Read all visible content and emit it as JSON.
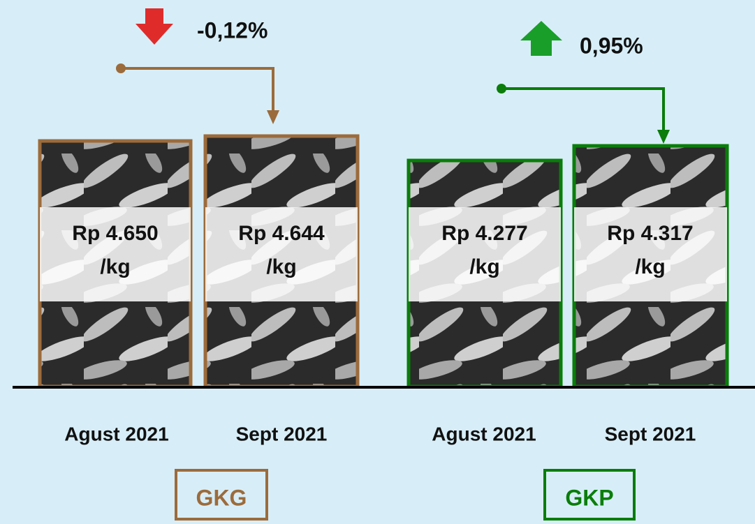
{
  "groups": [
    {
      "label": "GKG",
      "change": "-0,12%",
      "items": [
        {
          "price": "Rp 4.650",
          "unit": "/kg",
          "period": "Agust 2021"
        },
        {
          "price": "Rp 4.644",
          "unit": "/kg",
          "period": "Sept 2021"
        }
      ]
    },
    {
      "label": "GKP",
      "change": "0,95%",
      "items": [
        {
          "price": "Rp 4.277",
          "unit": "/kg",
          "period": "Agust 2021"
        },
        {
          "price": "Rp 4.317",
          "unit": "/kg",
          "period": "Sept 2021"
        }
      ]
    }
  ]
}
